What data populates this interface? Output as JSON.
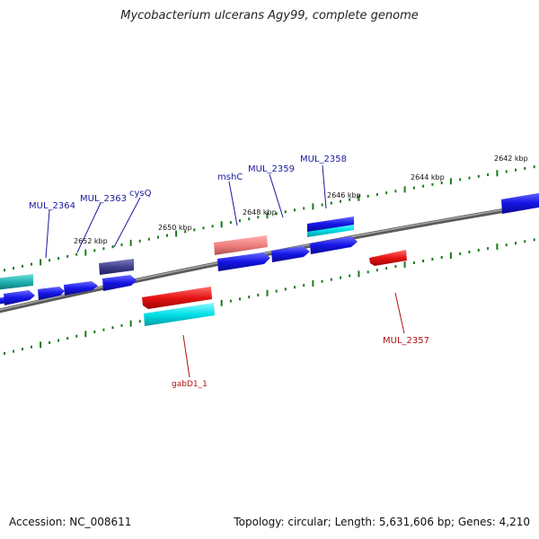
{
  "title": "Mycobacterium ulcerans Agy99, complete genome",
  "footer": {
    "accession": "Accession: NC_008611",
    "summary": "Topology: circular; Length: 5,631,606 bp; Genes: 4,210"
  },
  "colors": {
    "backbone": "#808080",
    "ticks": "#1a7a1a",
    "forward_gene": "#1414e6",
    "reverse_gene": "#e61414",
    "cyan_feature": "#00d8e0",
    "label_blue": "#1a1aa0",
    "label_red": "#b01010"
  },
  "scale_labels": {
    "k2642": "2642 kbp",
    "k2644": "2644 kbp",
    "k2646": "2646 kbp",
    "k2648": "2648 kbp",
    "k2650": "2650 kbp",
    "k2652": "2652 kbp"
  },
  "gene_labels": {
    "mul_2364": "MUL_2364",
    "mul_2363": "MUL_2363",
    "cysq": "cysQ",
    "mshc": "mshC",
    "mul_2359": "MUL_2359",
    "mul_2358": "MUL_2358",
    "mul_2357": "MUL_2357",
    "gabd1_1": "gabD1_1"
  }
}
